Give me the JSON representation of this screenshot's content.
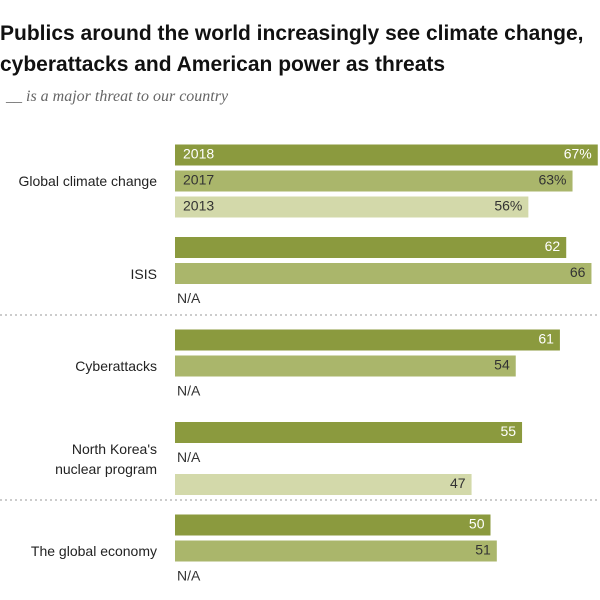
{
  "chart_data": {
    "type": "bar",
    "title": "Publics around the world increasingly see climate change, cyberattacks and American power as threats",
    "subtitle": "__ is a major threat to our country",
    "categories": [
      "Global climate change",
      "ISIS",
      "Cyberattacks",
      "North Korea's\nnuclear program",
      "The global economy"
    ],
    "series": [
      {
        "name": "2018",
        "color": "#8b9a3e",
        "values": [
          67,
          62,
          61,
          55,
          50
        ],
        "value_labels": [
          "67%",
          "62",
          "61",
          "55",
          "50"
        ]
      },
      {
        "name": "2017",
        "color": "#aab66b",
        "values": [
          63,
          66,
          54,
          null,
          51
        ],
        "value_labels": [
          "63%",
          "66",
          "54",
          null,
          "51"
        ]
      },
      {
        "name": "2013",
        "color": "#d3d9aa",
        "values": [
          56,
          null,
          null,
          47,
          null
        ],
        "value_labels": [
          "56%",
          null,
          null,
          "47",
          null
        ]
      }
    ],
    "na_label": "N/A"
  }
}
